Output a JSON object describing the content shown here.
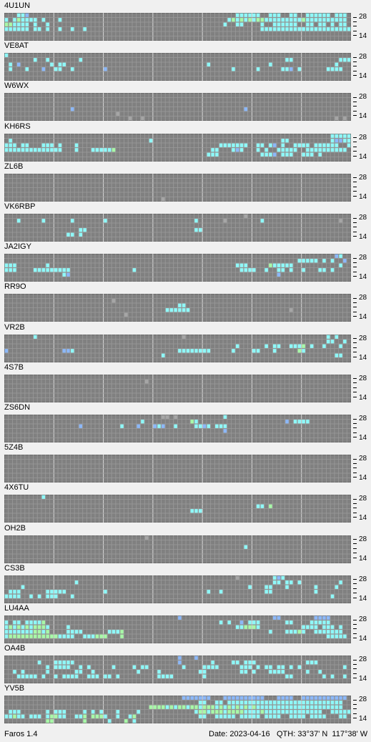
{
  "app": {
    "version_label": "Faros 1.4"
  },
  "status": {
    "date_text": "Date: 2023-04-16",
    "qth_text": "QTH: 33°37' N  117°38' W"
  },
  "axis": {
    "top_label": "28",
    "bottom_label": "14"
  },
  "colors": {
    "cell_off": "#808080",
    "cell_dim": "#a6a6a6",
    "cyan": "#8ff8f8",
    "green": "#a8f8a8",
    "blue": "#8cb8f8"
  },
  "legend_note": "Cell codes: c=cyan g=green b=blue d=light-gray",
  "beacons": [
    {
      "name": "4U1UN",
      "rows": {
        "0": "...ccb..................................................cccccc..ccc..cc..cccccc.ccc.",
        "1": "c.cgcccc.c...c........................................cgcgcgcggcccccccccgcccccccccc",
        "2": "ggcccc.c..c..........................................c..cc....c..cccccc..cc.cc.c.cc.",
        "3": "cccccc.cc.c..c..c..c..........................................cccccccccccccccccccccc"
      }
    },
    {
      "name": "VE8AT",
      "rows": {
        "0": "c...................................................................................",
        "1": ".......c..c.......c.................................................cc...........ccc",
        "2": ".c.b.......c.cc..................................c..............c...............c.....",
        "3": ".c...c...b..cc..c.......b..............................c.....c.....ccb.c......cccc..c"
      }
    },
    {
      "name": "W6WX",
      "rows": {
        "3": "................b.........................................b........................",
        "4": "...........................d.......................................................",
        "5": "..............................d..d..............................................d.d"
      }
    },
    {
      "name": "KH6RS",
      "rows": {
        "0": "...............................................................................cccccc",
        "1": ".c.................................c...............................cc..........cbbcc.",
        "2": "ccc.cc...ccc.c...c..................................ccccccc..cc.cb.c..cccc.cccccc..c",
        "3": "cccccccccccccc...c...cccccg.......................cc...cbc...c.c..ccccc..cccccccccc.",
        "4": ".................................................ccc..........cccb.ccc..ccc.c......."
      }
    },
    {
      "name": "ZL6B",
      "rows": {
        "5": "......................................d............................................."
      }
    },
    {
      "name": "VK6RBP",
      "rows": {
        "0": "..........................................................d........................",
        "1": "...c.....c......c.......c.....................c......d........c..................d..",
        "3": "..................cc..........................cc...................................",
        "4": "...............cc.c................................................................"
      }
    },
    {
      "name": "JA2IGY",
      "rows": {
        "0": "................................................................................bc.",
        "1": ".......................................................................ccccc.c.c..b",
        "2": "ccc.......c.............................................ccc.....gccccc...........c..",
        "3": "ccc....ccccccccc...............c.........................cccc..c..cc.c..c...cc.c....",
        "4": "..............cb..................................................b................"
      }
    },
    {
      "name": "RR9O",
      "rows": {
        "1": "..........................d........................................................",
        "2": "..........................................cc.....................................",
        "3": ".......................................cccccc........................d...........",
        "4": ".............................d....................................................."
      }
    },
    {
      "name": "VR2B",
      "rows": {
        "0": ".......c...................................d..................................c.c..",
        "1": "..............................................................................cc..c.",
        "2": "........................................................c......c.cc..cccg.c..c...c..",
        "3": "b.............bbc.........................cccccccc.....c....cc...c.....gc...........",
        "4": "......................................c.........................................cc.."
      }
    },
    {
      "name": "4S7B",
      "rows": {
        "1": "..................................d.................................................."
      }
    },
    {
      "name": "ZS6DN",
      "rows": {
        "0": "......................................dd.d...........c..............................",
        "1": ".................................c...........gc.....................b.cccc.........",
        "2": "..................b.........c...b...bcb..c....ccbc.ccc.............................",
        "3": ".....................................................b.............................."
      }
    },
    {
      "name": "5Z4B",
      "rows": {}
    },
    {
      "name": "4X6TU",
      "rows": {
        "0": ".........c.........................................................................",
        "2": ".............................................................cc.g...................",
        "3": ".............................................ccc...................................."
      }
    },
    {
      "name": "OH2B",
      "rows": {
        "0": "..................................d................................................",
        "2": "..........................................................c........................."
      }
    },
    {
      "name": "CS3B",
      "rows": {
        "0": "........................................................d........cbc.............",
        "1": ".................c...............................................cc.cc.c.........c..",
        "2": "....c......................................................c...cc...c......c....c...",
        "3": ".ccc......ccccc.........c........................c..c..........cc..........c........",
        "4": "cccc..c.c.ccc...c..............................................................c...."
      }
    },
    {
      "name": "LU4AA",
      "rows": {
        "0": "..........................................b......................bb........bbbb..",
        "1": "c.cc.ccccg..........................................c.c..b.ccc......cc....ccccc.",
        "2": "cgcgcgcgggc....c........................................ccgggc..........cccc.ccc.c",
        "3": "cccccccggcg....cccc......cccg...................................c...cccgc..ccccccc",
        "4": "cggggggggggggcccc..cccggg...g.................................................ccccc"
      }
    },
    {
      "name": "OA4B",
      "rows": {
        "0": "..........................................b...b...................................",
        "1": "........c...ccccc.........................b.......c....cc.ccc............ccc........",
        "2": "..........c.cccc..c.c.....c....c.cc........c....cccc.....ccc.c.cc.cc.c.c..........c",
        "3": "..c.c.....c......cc..c..........c....c.........cc........cc.c...cccc.....c..c...",
        "4": "...ccccc.c..c.cccc..ccc.cc.c.........cccc.......c...................cc.......c.c..c"
      }
    },
    {
      "name": "YV5B",
      "rows": {
        "0": "...........................................bbbbbbb...bbbbbbbbbb...bbbb..bbbbbbbbbbb",
        "1": "...............................................cc..cc.cccccccccccccccccccccccccccc",
        "2": "...................................ggggcgcggcggcgggcgcgcgcgcgccccccccccccccccccccc",
        "3": ".ccc......c.ccc....c.c.c...c....c.............cggcgggcggggccccgcccccccccccccc..ccccc",
        "4": "ccgcc.ccc.cggcc..ccg.gggc..c..cg...............cc..ccccc.ccccc.cccc..cccc.cccc...cc",
        "5": "..........gg.......g.....c...g.c.................................................."
      }
    }
  ]
}
